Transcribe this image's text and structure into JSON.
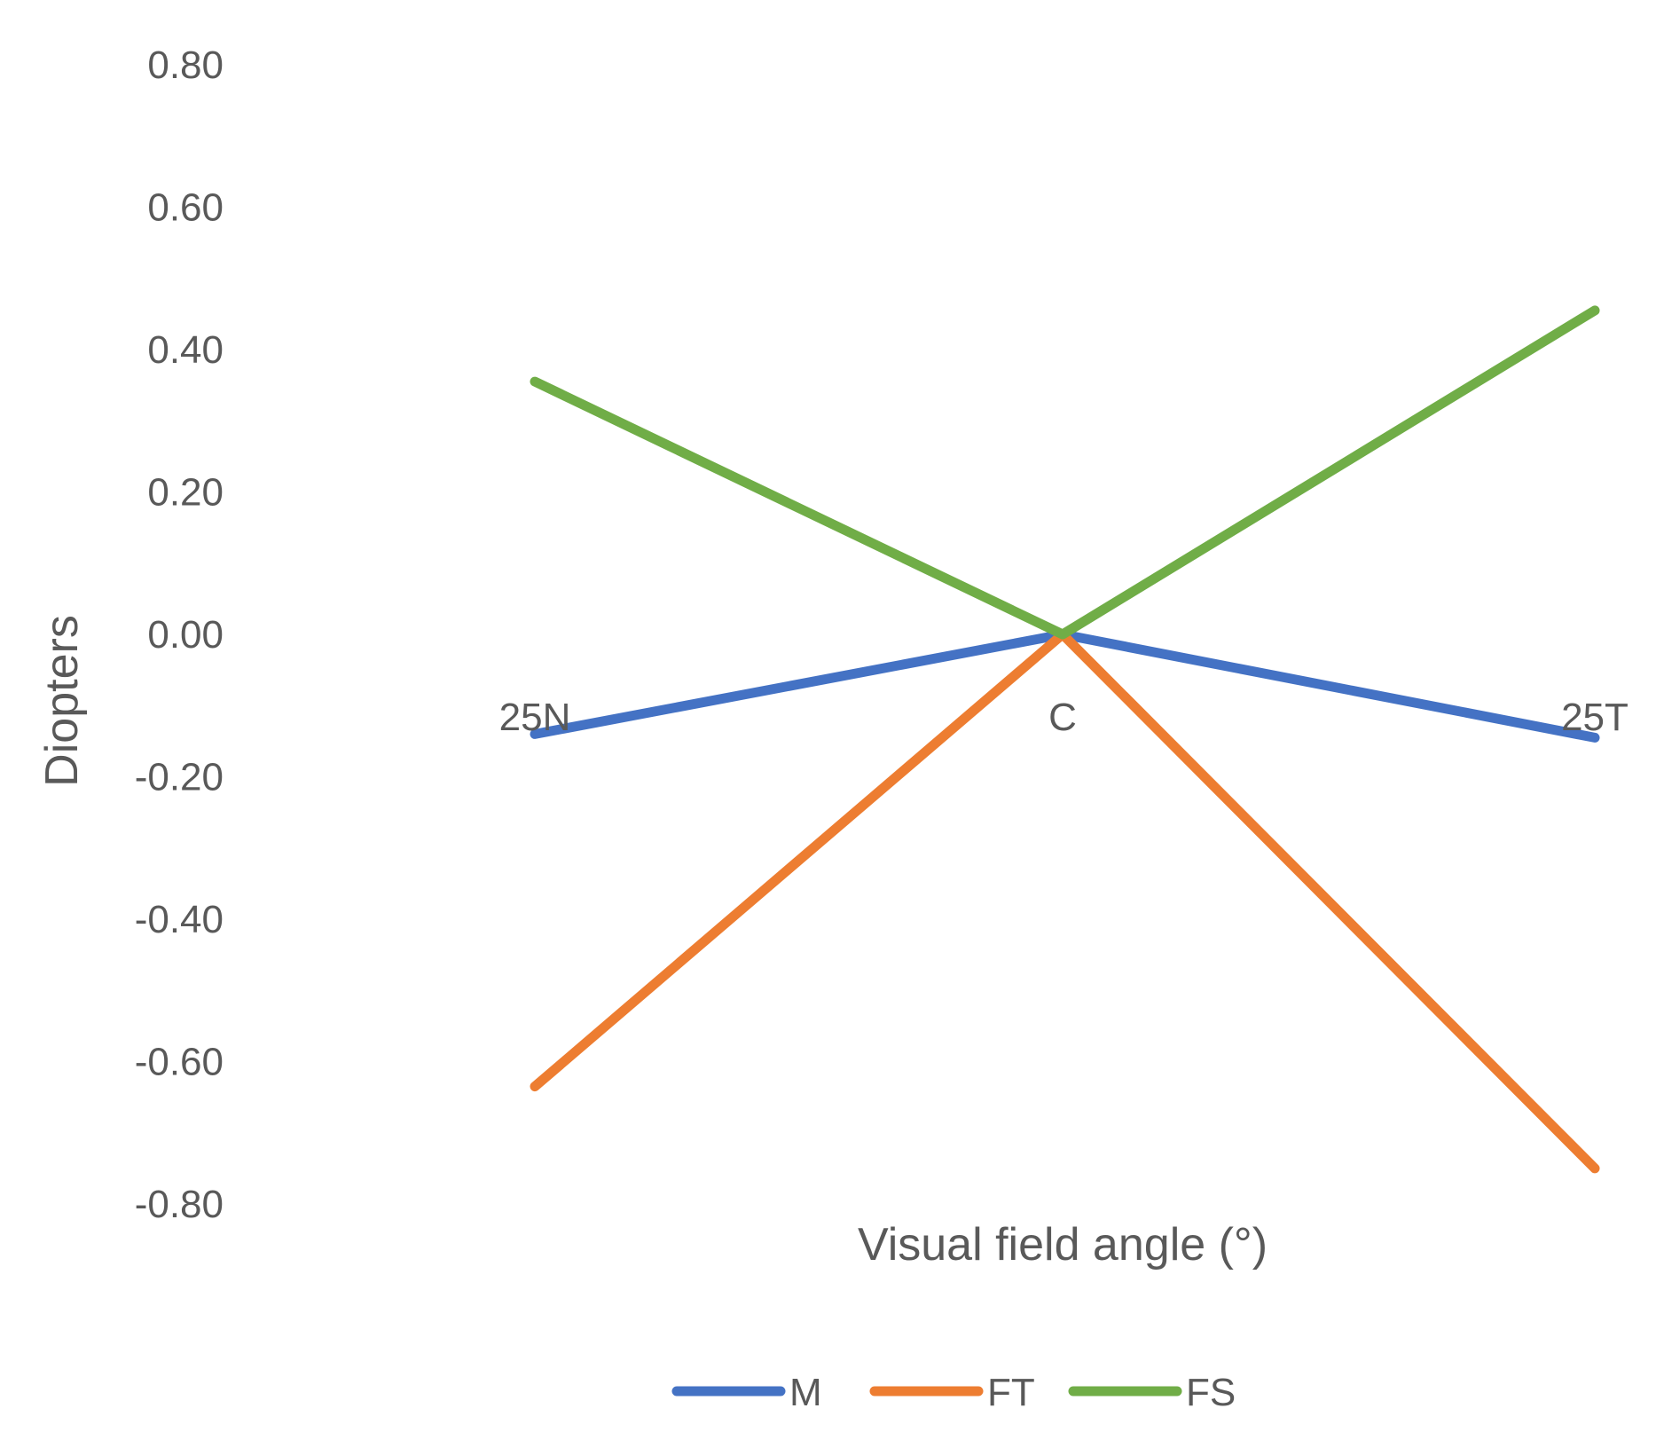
{
  "chart_data": {
    "type": "line",
    "title": "",
    "xlabel": "Visual field angle (°)",
    "ylabel": "Diopters",
    "categories": [
      "25N",
      "C",
      "25T"
    ],
    "ylim": [
      -0.8,
      0.8
    ],
    "yticks": [
      0.8,
      0.6,
      0.4,
      0.2,
      0.0,
      -0.2,
      -0.4,
      -0.6,
      -0.8
    ],
    "ytick_labels": [
      "0.80",
      "0.60",
      "0.40",
      "0.20",
      "0.00",
      "-0.20",
      "-0.40",
      "-0.60",
      "-0.80"
    ],
    "grid": false,
    "legend_position": "bottom",
    "series": [
      {
        "name": "M",
        "color": "#4472C4",
        "values": [
          -0.14,
          0.0,
          -0.145
        ]
      },
      {
        "name": "FT",
        "color": "#ED7D31",
        "values": [
          -0.635,
          0.0,
          -0.75
        ]
      },
      {
        "name": "FS",
        "color": "#70AD47",
        "values": [
          0.355,
          0.0,
          0.455
        ]
      }
    ]
  }
}
